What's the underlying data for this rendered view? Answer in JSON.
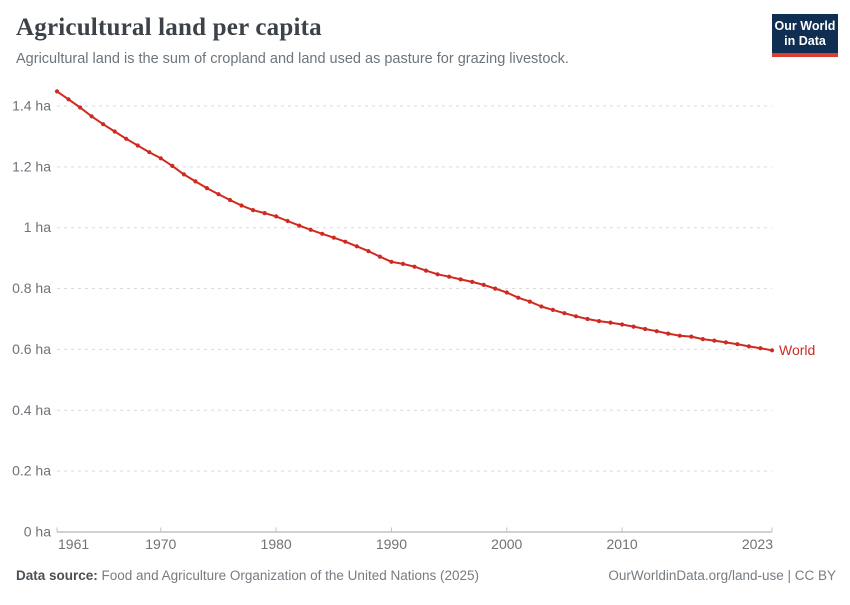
{
  "header": {
    "title": "Agricultural land per capita",
    "subtitle": "Agricultural land is the sum of cropland and land used as pasture for grazing livestock.",
    "logo": {
      "line1": "Our World",
      "line2": "in Data"
    }
  },
  "footer": {
    "source_label": "Data source:",
    "source_text": " Food and Agriculture Organization of the United Nations (2025)",
    "credit": "OurWorldinData.org/land-use | CC BY"
  },
  "colors": {
    "series_red": "#d02a20",
    "logo_navy": "#0f2e52",
    "logo_red": "#dc3d32",
    "grid_gray": "#d9d9d9",
    "axis_gray": "#a3a3a3",
    "tick_mark_gray": "#c2c2c2",
    "label_gray": "#6e7377"
  },
  "chart_data": {
    "type": "line",
    "title": "Agricultural land per capita",
    "xlabel": "",
    "ylabel": "",
    "unit": "ha",
    "xlim": [
      1961,
      2023
    ],
    "ylim": [
      0,
      1.45
    ],
    "grid": "horizontal-dashed",
    "legend_position": "end-of-line-label",
    "xticks": [
      1961,
      1970,
      1980,
      1990,
      2000,
      2010,
      2023
    ],
    "yticks": [
      0,
      0.2,
      0.4,
      0.6,
      0.8,
      1.0,
      1.2,
      1.4
    ],
    "ytick_suffix": " ha",
    "x": [
      1961,
      1962,
      1963,
      1964,
      1965,
      1966,
      1967,
      1968,
      1969,
      1970,
      1971,
      1972,
      1973,
      1974,
      1975,
      1976,
      1977,
      1978,
      1979,
      1980,
      1981,
      1982,
      1983,
      1984,
      1985,
      1986,
      1987,
      1988,
      1989,
      1990,
      1991,
      1992,
      1993,
      1994,
      1995,
      1996,
      1997,
      1998,
      1999,
      2000,
      2001,
      2002,
      2003,
      2004,
      2005,
      2006,
      2007,
      2008,
      2009,
      2010,
      2011,
      2012,
      2013,
      2014,
      2015,
      2016,
      2017,
      2018,
      2019,
      2020,
      2021,
      2022,
      2023
    ],
    "series": [
      {
        "name": "World",
        "color": "#d02a20",
        "values": [
          1.448,
          1.422,
          1.395,
          1.366,
          1.34,
          1.316,
          1.292,
          1.27,
          1.248,
          1.228,
          1.203,
          1.175,
          1.152,
          1.13,
          1.11,
          1.091,
          1.073,
          1.058,
          1.048,
          1.037,
          1.022,
          1.007,
          0.993,
          0.98,
          0.967,
          0.954,
          0.939,
          0.923,
          0.905,
          0.888,
          0.881,
          0.872,
          0.859,
          0.847,
          0.839,
          0.83,
          0.822,
          0.812,
          0.8,
          0.787,
          0.77,
          0.757,
          0.741,
          0.73,
          0.719,
          0.709,
          0.7,
          0.693,
          0.688,
          0.682,
          0.675,
          0.667,
          0.66,
          0.652,
          0.645,
          0.642,
          0.634,
          0.629,
          0.623,
          0.617,
          0.61,
          0.604,
          0.597
        ]
      }
    ]
  }
}
